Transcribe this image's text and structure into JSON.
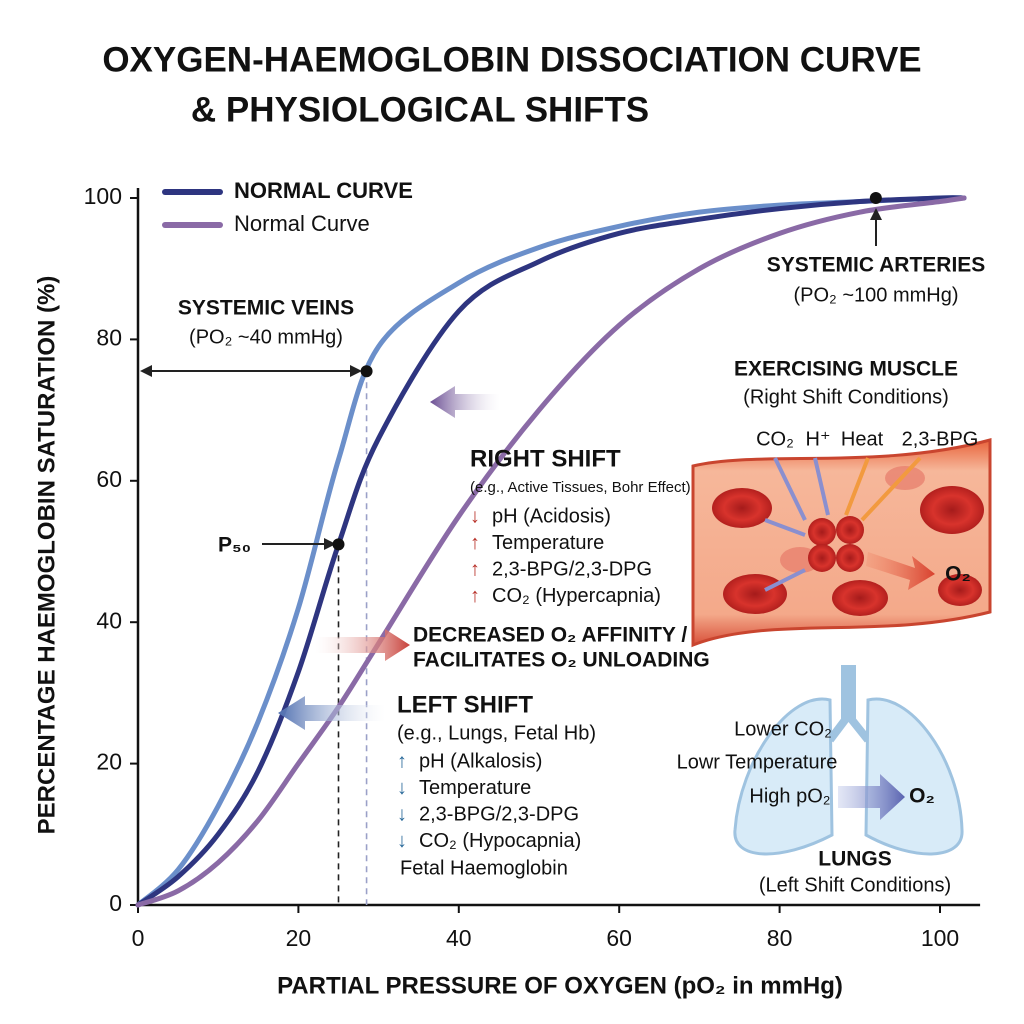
{
  "chart_data": {
    "type": "line",
    "title": [
      "OXYGEN-HAEMOGLOBIN DISSOCIATION CURVE",
      "& PHYSIOLOGICAL SHIFTS"
    ],
    "x_label": "PARTIAL PRESSURE OF OXYGEN (pO₂ in mmHg)",
    "y_label": "PERCENTAGE HAEMOGLOBIN SATURATION (%)",
    "xlim": [
      0,
      105
    ],
    "ylim": [
      0,
      100
    ],
    "xticks": [
      0,
      20,
      40,
      60,
      80,
      100
    ],
    "yticks": [
      0,
      20,
      40,
      60,
      80,
      100
    ],
    "legend": "upper left",
    "x": [
      0,
      5,
      10,
      15,
      20,
      25,
      30,
      40,
      50,
      60,
      70,
      80,
      90,
      100,
      103
    ],
    "series": [
      {
        "color": "#6b8fca",
        "values": [
          0,
          5,
          14,
          26,
          42,
          63,
          79,
          88,
          93,
          96,
          98,
          99,
          99.5,
          100,
          100
        ]
      },
      {
        "name": "NORMAL CURVE",
        "color": "#2e3580",
        "values": [
          0,
          4,
          10,
          19,
          33,
          51,
          66,
          84,
          91,
          95,
          97,
          98.5,
          99.5,
          100,
          100
        ]
      },
      {
        "name": "Normal Curve",
        "color": "#8a6aa6",
        "values": [
          0,
          2,
          6,
          12,
          20,
          28,
          37,
          55,
          70,
          82,
          90,
          95,
          98,
          99.5,
          100
        ]
      }
    ],
    "markers": [
      {
        "x": 28.5,
        "y": 75.5
      },
      {
        "x": 25,
        "y": 51
      },
      {
        "x": 92,
        "y": 100
      }
    ],
    "annotations": {
      "systemic_veins": {
        "label": "SYSTEMIC VEINS",
        "detail": "(PO₂ ~40 mmHg)"
      },
      "systemic_arteries": {
        "label": "SYSTEMIC ARTERIES",
        "detail": "(PO₂ ~100 mmHg)"
      },
      "p50": "P₅₀",
      "right_shift": {
        "title": "RIGHT SHIFT",
        "example": "(e.g., Active Tissues, Bohr Effect)",
        "items": [
          {
            "arrow": "↓",
            "text": "pH (Acidosis)"
          },
          {
            "arrow": "↑",
            "text": "Temperature"
          },
          {
            "arrow": "↑",
            "text": "2,3-BPG/2,3-DPG"
          },
          {
            "arrow": "↑",
            "text": "CO₂ (Hypercapnia)"
          }
        ]
      },
      "right_shift_effect": [
        "DECREASED O₂ AFFINITY /",
        "FACILITATES O₂ UNLOADING"
      ],
      "left_shift": {
        "title": "LEFT SHIFT",
        "example": "(e.g., Lungs, Fetal Hb)",
        "items": [
          {
            "arrow": "↑",
            "text": "pH (Alkalosis)"
          },
          {
            "arrow": "↓",
            "text": "Temperature"
          },
          {
            "arrow": "↓",
            "text": "2,3-BPG/2,3-DPG"
          },
          {
            "arrow": "↓",
            "text": "CO₂ (Hypocapnia)"
          }
        ],
        "extra": "Fetal Haemoglobin"
      },
      "exercising_muscle": {
        "title": "EXERCISING MUSCLE",
        "subtitle": "(Right Shift Conditions)",
        "factors": [
          "CO₂",
          "H⁺",
          "Heat",
          "2,3-BPG"
        ],
        "output": "O₂"
      },
      "lungs": {
        "title": "LUNGS",
        "subtitle": "(Left Shift Conditions)",
        "factors": [
          "Lower CO₂",
          "Lowr Temperature",
          "High pO₂"
        ],
        "output": "O₂"
      }
    }
  }
}
